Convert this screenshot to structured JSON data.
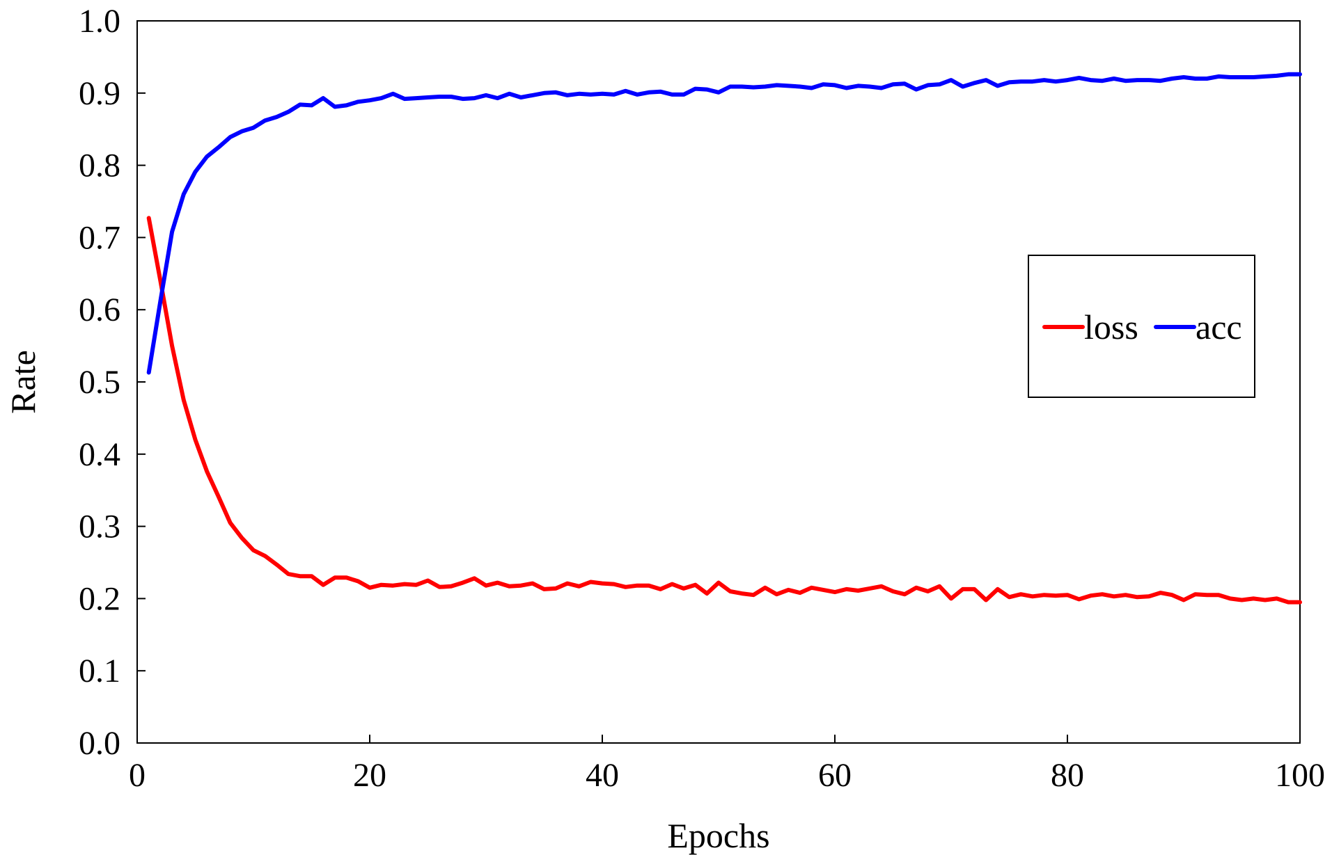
{
  "chart_data": {
    "type": "line",
    "xlabel": "Epochs",
    "ylabel": "Rate",
    "xlim": [
      0,
      100
    ],
    "ylim": [
      0.0,
      1.0
    ],
    "x_ticks": [
      0,
      20,
      40,
      60,
      80,
      100
    ],
    "x_tick_labels": [
      "0",
      "20",
      "40",
      "60",
      "80",
      "100"
    ],
    "y_ticks": [
      0.0,
      0.1,
      0.2,
      0.3,
      0.4,
      0.5,
      0.6,
      0.7,
      0.8,
      0.9,
      1.0
    ],
    "y_tick_labels": [
      "0.0",
      "0.1",
      "0.2",
      "0.3",
      "0.4",
      "0.5",
      "0.6",
      "0.7",
      "0.8",
      "0.9",
      "1.0"
    ],
    "grid": false,
    "legend": {
      "placement": "right",
      "orientation": "horizontal"
    },
    "x": [
      1,
      2,
      3,
      4,
      5,
      6,
      7,
      8,
      9,
      10,
      11,
      12,
      13,
      14,
      15,
      16,
      17,
      18,
      19,
      20,
      21,
      22,
      23,
      24,
      25,
      26,
      27,
      28,
      29,
      30,
      31,
      32,
      33,
      34,
      35,
      36,
      37,
      38,
      39,
      40,
      41,
      42,
      43,
      44,
      45,
      46,
      47,
      48,
      49,
      50,
      51,
      52,
      53,
      54,
      55,
      56,
      57,
      58,
      59,
      60,
      61,
      62,
      63,
      64,
      65,
      66,
      67,
      68,
      69,
      70,
      71,
      72,
      73,
      74,
      75,
      76,
      77,
      78,
      79,
      80,
      81,
      82,
      83,
      84,
      85,
      86,
      87,
      88,
      89,
      90,
      91,
      92,
      93,
      94,
      95,
      96,
      97,
      98,
      99,
      100
    ],
    "series": [
      {
        "name": "loss",
        "color": "#ff0000",
        "values": [
          0.727,
          0.64,
          0.55,
          0.475,
          0.42,
          0.376,
          0.341,
          0.305,
          0.284,
          0.267,
          0.259,
          0.247,
          0.234,
          0.231,
          0.231,
          0.219,
          0.229,
          0.229,
          0.224,
          0.215,
          0.219,
          0.218,
          0.22,
          0.219,
          0.225,
          0.216,
          0.217,
          0.222,
          0.228,
          0.218,
          0.222,
          0.217,
          0.218,
          0.221,
          0.213,
          0.214,
          0.221,
          0.217,
          0.223,
          0.221,
          0.22,
          0.216,
          0.218,
          0.218,
          0.213,
          0.22,
          0.214,
          0.219,
          0.207,
          0.222,
          0.21,
          0.207,
          0.205,
          0.215,
          0.206,
          0.212,
          0.208,
          0.215,
          0.212,
          0.209,
          0.213,
          0.211,
          0.214,
          0.217,
          0.21,
          0.206,
          0.215,
          0.21,
          0.217,
          0.2,
          0.213,
          0.213,
          0.198,
          0.213,
          0.202,
          0.206,
          0.203,
          0.205,
          0.204,
          0.205,
          0.199,
          0.204,
          0.206,
          0.203,
          0.205,
          0.202,
          0.203,
          0.208,
          0.205,
          0.198,
          0.206,
          0.205,
          0.205,
          0.2,
          0.198,
          0.2,
          0.198,
          0.2,
          0.195,
          0.195
        ]
      },
      {
        "name": "acc",
        "color": "#0000ff",
        "values": [
          0.513,
          0.612,
          0.708,
          0.76,
          0.791,
          0.812,
          0.825,
          0.839,
          0.847,
          0.852,
          0.862,
          0.867,
          0.874,
          0.884,
          0.883,
          0.893,
          0.881,
          0.883,
          0.888,
          0.89,
          0.893,
          0.899,
          0.892,
          0.893,
          0.894,
          0.895,
          0.895,
          0.892,
          0.893,
          0.897,
          0.893,
          0.899,
          0.894,
          0.897,
          0.9,
          0.901,
          0.897,
          0.899,
          0.898,
          0.899,
          0.898,
          0.903,
          0.898,
          0.901,
          0.902,
          0.898,
          0.898,
          0.906,
          0.905,
          0.901,
          0.909,
          0.909,
          0.908,
          0.909,
          0.911,
          0.91,
          0.909,
          0.907,
          0.912,
          0.911,
          0.907,
          0.91,
          0.909,
          0.907,
          0.912,
          0.913,
          0.905,
          0.911,
          0.912,
          0.918,
          0.909,
          0.914,
          0.918,
          0.91,
          0.915,
          0.916,
          0.916,
          0.918,
          0.916,
          0.918,
          0.921,
          0.918,
          0.917,
          0.92,
          0.917,
          0.918,
          0.918,
          0.917,
          0.92,
          0.922,
          0.92,
          0.92,
          0.923,
          0.922,
          0.922,
          0.922,
          0.923,
          0.924,
          0.926,
          0.926
        ]
      }
    ]
  }
}
